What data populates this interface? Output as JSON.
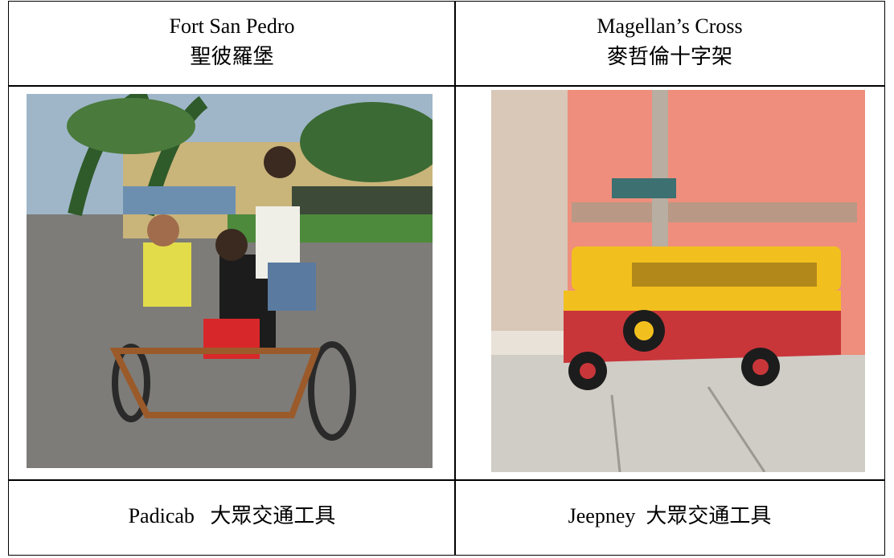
{
  "table": {
    "rows": [
      [
        [
          "Fort San Pedro",
          "聖彼羅堡"
        ],
        [
          "Magellan’s Cross",
          "麥哲倫十字架"
        ]
      ],
      [
        [
          "Padicab   大眾交通工具"
        ],
        [
          "Jeepney  大眾交通工具"
        ]
      ]
    ]
  }
}
